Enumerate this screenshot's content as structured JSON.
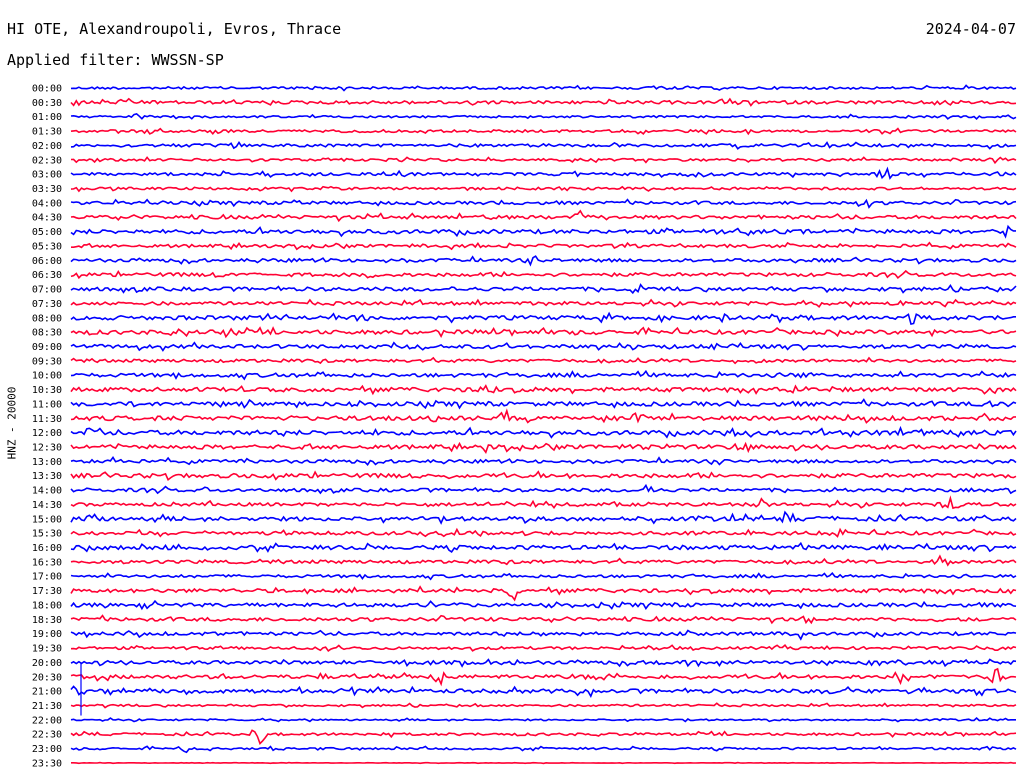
{
  "header": {
    "title": "HI OTE, Alexandroupoli, Evros, Thrace",
    "date": "2024-04-07",
    "filter": "Applied filter: WWSSN-SP"
  },
  "chart_data": {
    "type": "line",
    "title": "HI OTE, Alexandroupoli, Evros, Thrace",
    "ylabel": "HNZ - 20000",
    "xlabel": "",
    "series_colors": [
      "#0000ff",
      "#ff0033"
    ],
    "rows": [
      {
        "label": "00:00",
        "color": "#0000ff",
        "amp": 1.2,
        "events": [
          [
            0.26,
            3
          ],
          [
            0.63,
            2
          ]
        ]
      },
      {
        "label": "00:30",
        "color": "#ff0033",
        "amp": 1.6,
        "events": [
          [
            0.91,
            3
          ]
        ]
      },
      {
        "label": "01:00",
        "color": "#0000ff",
        "amp": 1.0,
        "events": [
          [
            0.07,
            5
          ],
          [
            0.75,
            2
          ]
        ]
      },
      {
        "label": "01:30",
        "color": "#ff0033",
        "amp": 1.3,
        "events": [
          [
            0.08,
            3
          ]
        ]
      },
      {
        "label": "02:00",
        "color": "#0000ff",
        "amp": 1.5,
        "events": [
          [
            0.8,
            3
          ]
        ]
      },
      {
        "label": "02:30",
        "color": "#ff0033",
        "amp": 1.2,
        "events": [
          [
            0.98,
            3
          ]
        ]
      },
      {
        "label": "03:00",
        "color": "#0000ff",
        "amp": 1.4,
        "events": [
          [
            0.53,
            3
          ],
          [
            0.86,
            7
          ]
        ]
      },
      {
        "label": "03:30",
        "color": "#ff0033",
        "amp": 1.2,
        "events": []
      },
      {
        "label": "04:00",
        "color": "#0000ff",
        "amp": 1.5,
        "events": [
          [
            0.24,
            4
          ],
          [
            0.84,
            8
          ]
        ]
      },
      {
        "label": "04:30",
        "color": "#ff0033",
        "amp": 1.7,
        "events": [
          [
            0.54,
            8
          ],
          [
            0.44,
            3
          ]
        ]
      },
      {
        "label": "05:00",
        "color": "#0000ff",
        "amp": 2.0,
        "events": [
          [
            0.11,
            4
          ],
          [
            0.7,
            3
          ],
          [
            0.99,
            5
          ]
        ]
      },
      {
        "label": "05:30",
        "color": "#ff0033",
        "amp": 1.5,
        "events": [
          [
            0.76,
            4
          ]
        ]
      },
      {
        "label": "06:00",
        "color": "#0000ff",
        "amp": 1.6,
        "events": [
          [
            0.49,
            4
          ]
        ]
      },
      {
        "label": "06:30",
        "color": "#ff0033",
        "amp": 1.7,
        "events": [
          [
            0.16,
            4
          ],
          [
            0.32,
            4
          ]
        ]
      },
      {
        "label": "07:00",
        "color": "#0000ff",
        "amp": 1.8,
        "events": [
          [
            0.6,
            6
          ]
        ]
      },
      {
        "label": "07:30",
        "color": "#ff0033",
        "amp": 1.6,
        "events": [
          [
            0.88,
            3
          ]
        ]
      },
      {
        "label": "08:00",
        "color": "#0000ff",
        "amp": 2.0,
        "events": [
          [
            0.31,
            4
          ],
          [
            0.89,
            8
          ]
        ]
      },
      {
        "label": "08:30",
        "color": "#ff0033",
        "amp": 2.0,
        "events": [
          [
            0.12,
            3
          ],
          [
            0.17,
            3
          ]
        ]
      },
      {
        "label": "09:00",
        "color": "#0000ff",
        "amp": 1.8,
        "events": [
          [
            0.68,
            6
          ]
        ]
      },
      {
        "label": "09:30",
        "color": "#ff0033",
        "amp": 1.5,
        "events": [
          [
            0.7,
            3
          ]
        ]
      },
      {
        "label": "10:00",
        "color": "#0000ff",
        "amp": 1.8,
        "events": [
          [
            0.77,
            4
          ]
        ]
      },
      {
        "label": "10:30",
        "color": "#ff0033",
        "amp": 2.0,
        "events": [
          [
            0.44,
            5
          ],
          [
            0.77,
            3
          ]
        ]
      },
      {
        "label": "11:00",
        "color": "#0000ff",
        "amp": 2.0,
        "events": [
          [
            0.97,
            7
          ]
        ]
      },
      {
        "label": "11:30",
        "color": "#ff0033",
        "amp": 2.1,
        "events": [
          [
            0.46,
            8
          ],
          [
            0.6,
            8
          ],
          [
            0.82,
            3
          ]
        ]
      },
      {
        "label": "12:00",
        "color": "#0000ff",
        "amp": 2.2,
        "events": [
          [
            0.02,
            5
          ],
          [
            0.29,
            5
          ],
          [
            0.7,
            4
          ]
        ]
      },
      {
        "label": "12:30",
        "color": "#ff0033",
        "amp": 2.0,
        "events": [
          [
            0.44,
            5
          ],
          [
            0.6,
            6
          ],
          [
            0.71,
            3
          ]
        ]
      },
      {
        "label": "13:00",
        "color": "#0000ff",
        "amp": 1.6,
        "events": [
          [
            0.05,
            5
          ]
        ]
      },
      {
        "label": "13:30",
        "color": "#ff0033",
        "amp": 2.0,
        "events": [
          [
            0.37,
            4
          ]
        ]
      },
      {
        "label": "14:00",
        "color": "#0000ff",
        "amp": 1.6,
        "events": [
          [
            0.14,
            4
          ],
          [
            0.61,
            3
          ]
        ]
      },
      {
        "label": "14:30",
        "color": "#ff0033",
        "amp": 1.6,
        "events": [
          [
            0.73,
            5
          ],
          [
            0.93,
            8
          ]
        ]
      },
      {
        "label": "15:00",
        "color": "#0000ff",
        "amp": 2.0,
        "events": [
          [
            0.02,
            6
          ],
          [
            0.76,
            5
          ]
        ]
      },
      {
        "label": "15:30",
        "color": "#ff0033",
        "amp": 1.7,
        "events": [
          [
            0.8,
            5
          ]
        ]
      },
      {
        "label": "16:00",
        "color": "#0000ff",
        "amp": 2.0,
        "events": [
          [
            0.03,
            5
          ],
          [
            0.11,
            4
          ]
        ]
      },
      {
        "label": "16:30",
        "color": "#ff0033",
        "amp": 1.6,
        "events": [
          [
            0.92,
            6
          ]
        ]
      },
      {
        "label": "17:00",
        "color": "#0000ff",
        "amp": 1.4,
        "events": []
      },
      {
        "label": "17:30",
        "color": "#ff0033",
        "amp": 1.8,
        "events": [
          [
            0.47,
            9
          ]
        ]
      },
      {
        "label": "18:00",
        "color": "#0000ff",
        "amp": 1.8,
        "events": [
          [
            0.5,
            3
          ],
          [
            0.56,
            3
          ]
        ]
      },
      {
        "label": "18:30",
        "color": "#ff0033",
        "amp": 1.7,
        "events": [
          [
            0.78,
            6
          ]
        ]
      },
      {
        "label": "19:00",
        "color": "#0000ff",
        "amp": 1.6,
        "events": [
          [
            0.17,
            4
          ],
          [
            0.5,
            5
          ],
          [
            0.77,
            7
          ]
        ]
      },
      {
        "label": "19:30",
        "color": "#ff0033",
        "amp": 1.3,
        "events": []
      },
      {
        "label": "20:00",
        "color": "#0000ff",
        "amp": 1.7,
        "events": [
          [
            0.47,
            3
          ],
          [
            0.62,
            3
          ]
        ]
      },
      {
        "label": "20:30",
        "color": "#ff0033",
        "amp": 1.8,
        "events": [
          [
            0.39,
            9
          ],
          [
            0.88,
            9
          ],
          [
            0.98,
            9
          ]
        ]
      },
      {
        "label": "21:00",
        "color": "#0000ff",
        "amp": 1.9,
        "events": [
          [
            0.0,
            7
          ],
          [
            0.55,
            4
          ],
          [
            0.8,
            5
          ]
        ]
      },
      {
        "label": "21:30",
        "color": "#ff0033",
        "amp": 1.0,
        "events": []
      },
      {
        "label": "22:00",
        "color": "#0000ff",
        "amp": 0.8,
        "events": []
      },
      {
        "label": "22:30",
        "color": "#ff0033",
        "amp": 1.2,
        "events": [
          [
            0.2,
            9
          ]
        ]
      },
      {
        "label": "23:00",
        "color": "#0000ff",
        "amp": 1.0,
        "events": [
          [
            0.12,
            3
          ],
          [
            0.97,
            4
          ]
        ]
      },
      {
        "label": "23:30",
        "color": "#ff0033",
        "amp": 0.2,
        "events": []
      }
    ]
  }
}
